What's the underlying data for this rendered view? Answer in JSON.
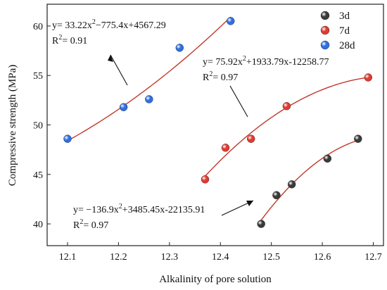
{
  "chart_data": {
    "type": "scatter",
    "title": "",
    "xlabel": "Alkalinity of pore solution",
    "ylabel": "Compressive strength (MPa)",
    "xlim": [
      12.06,
      12.72
    ],
    "ylim": [
      37.8,
      62.2
    ],
    "xticks": [
      12.1,
      12.2,
      12.3,
      12.4,
      12.5,
      12.6,
      12.7
    ],
    "yticks": [
      40,
      45,
      50,
      55,
      60
    ],
    "xtick_labels": [
      "12.1",
      "12.2",
      "12.3",
      "12.4",
      "12.5",
      "12.6",
      "12.7"
    ],
    "ytick_labels": [
      "40",
      "45",
      "50",
      "55",
      "60"
    ],
    "legend_position": "top-right",
    "fit_line_color": "#c0392b",
    "series": [
      {
        "name": "3d",
        "color": "#3a3a3a",
        "x": [
          12.48,
          12.51,
          12.54,
          12.61,
          12.67
        ],
        "y": [
          40.0,
          42.9,
          44.0,
          46.6,
          48.6
        ],
        "fit": {
          "a": -136.9,
          "b": 3485.45,
          "c": -22135.91,
          "from": 12.48,
          "to": 12.67
        }
      },
      {
        "name": "7d",
        "color": "#e03a2f",
        "x": [
          12.37,
          12.41,
          12.46,
          12.53,
          12.69
        ],
        "y": [
          44.5,
          47.7,
          48.6,
          51.9,
          54.8
        ],
        "fit": {
          "a": 75.92,
          "b": 1933.79,
          "c": -12258.77,
          "from": 12.37,
          "to": 12.69
        }
      },
      {
        "name": "28d",
        "color": "#2f6fe0",
        "x": [
          12.1,
          12.21,
          12.26,
          12.32,
          12.42
        ],
        "y": [
          48.6,
          51.8,
          52.6,
          57.8,
          60.5
        ],
        "fit": {
          "a": 33.22,
          "b": -775.4,
          "c": 4567.29,
          "from": 12.1,
          "to": 12.42
        }
      }
    ],
    "annotations": [
      {
        "series": "28d",
        "equation": "y= 33.22x^2−775.4x+4567.29",
        "eq_parts": [
          "y= 33.22x",
          "2",
          "−775.4x+4567.29"
        ],
        "r2": "= 0.91"
      },
      {
        "series": "7d",
        "equation": "y= 75.92x^2+1933.79x-12258.77",
        "eq_parts": [
          "y= 75.92x",
          "2",
          "+1933.79x-12258.77"
        ],
        "r2": "= 0.97"
      },
      {
        "series": "3d",
        "equation": "y= −136.9x^2+3485.45x-22135.91",
        "eq_parts": [
          "y= −136.9x",
          "2",
          "+3485.45x-22135.91"
        ],
        "r2": "= 0.97"
      }
    ]
  }
}
